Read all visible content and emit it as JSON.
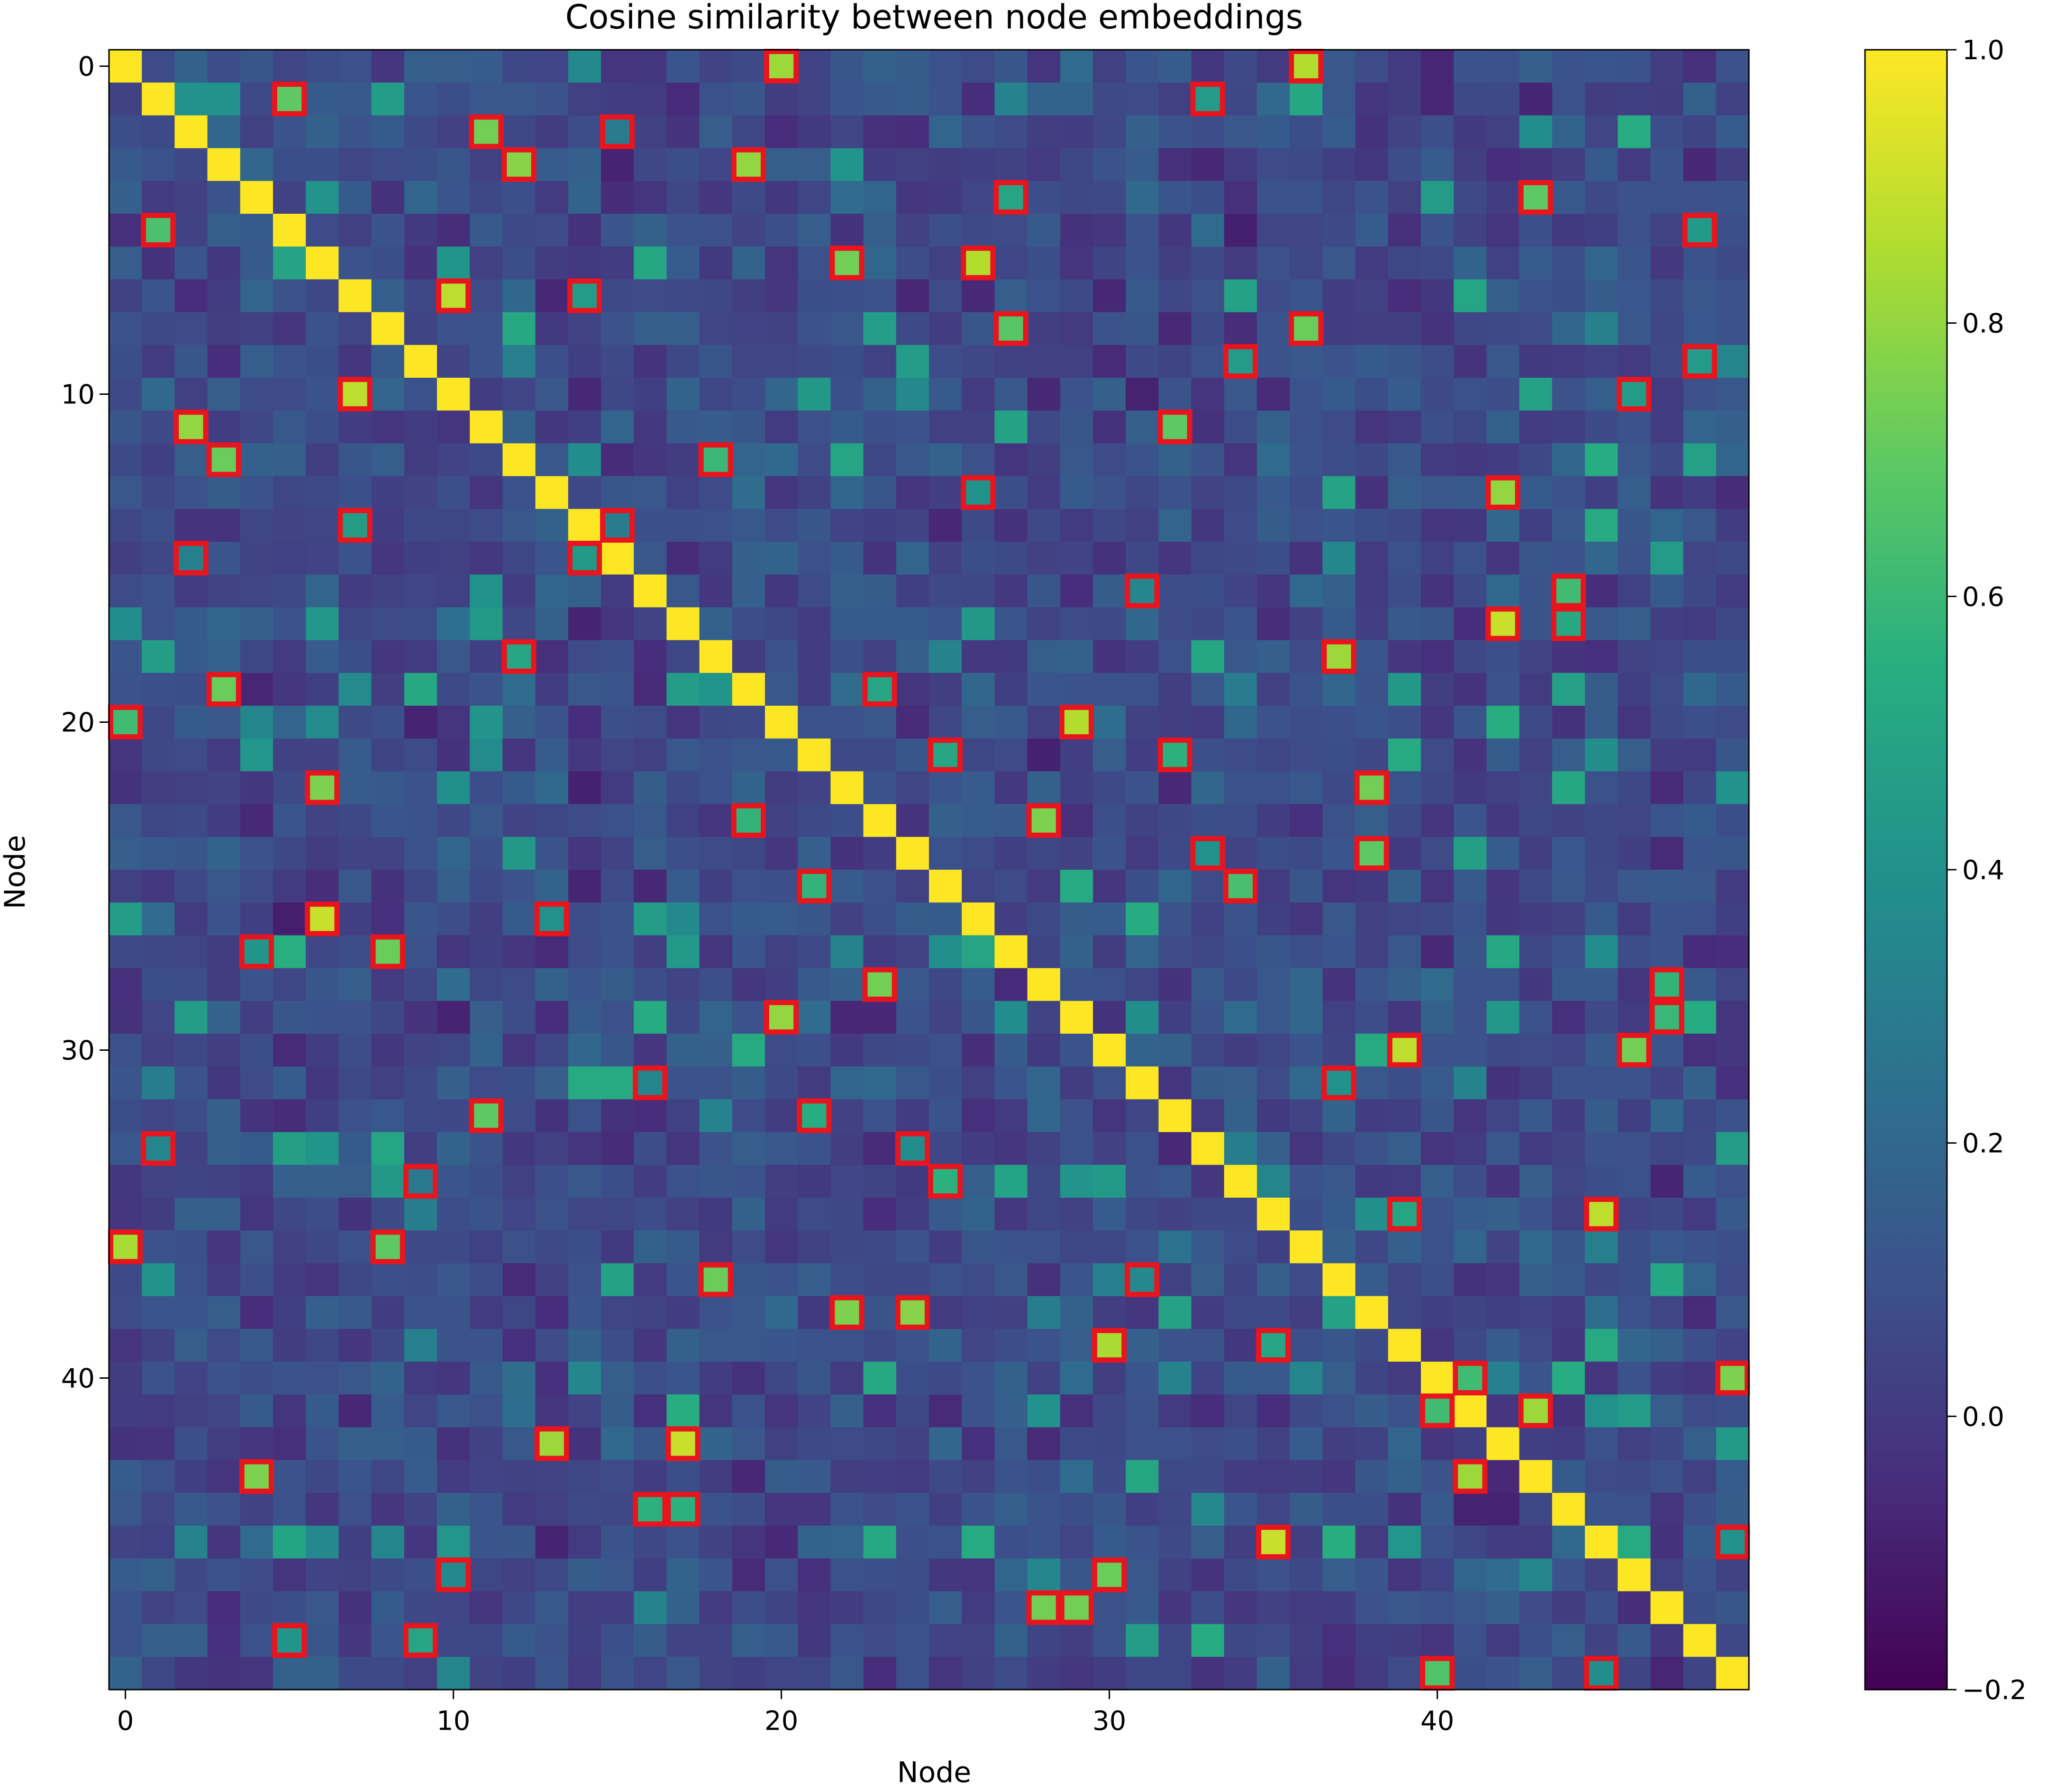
{
  "chart_data": {
    "type": "heatmap",
    "title": "Cosine similarity between node embeddings",
    "xlabel": "Node",
    "ylabel": "Node",
    "n": 50,
    "x_ticks": [
      0,
      10,
      20,
      30,
      40
    ],
    "y_ticks": [
      0,
      10,
      20,
      30,
      40
    ],
    "colormap": "viridis",
    "vmin": -0.2,
    "vmax": 1.0,
    "colorbar_ticks": [
      {
        "value": 1.0,
        "label": "1.0"
      },
      {
        "value": 0.8,
        "label": "0.8"
      },
      {
        "value": 0.6,
        "label": "0.6"
      },
      {
        "value": 0.4,
        "label": "0.4"
      },
      {
        "value": 0.2,
        "label": "0.2"
      },
      {
        "value": 0.0,
        "label": "0.0"
      },
      {
        "value": -0.2,
        "label": "−0.2"
      }
    ],
    "diagonal_value": 1.0,
    "background_value_range": [
      -0.2,
      0.6
    ],
    "highlight_color": "#e8141e",
    "highlighted_cells": [
      [
        0,
        20,
        0.82
      ],
      [
        0,
        36,
        0.86
      ],
      [
        1,
        5,
        0.7
      ],
      [
        1,
        33,
        0.45
      ],
      [
        2,
        11,
        0.74
      ],
      [
        2,
        15,
        0.3
      ],
      [
        3,
        12,
        0.78
      ],
      [
        3,
        19,
        0.8
      ],
      [
        4,
        27,
        0.5
      ],
      [
        4,
        43,
        0.7
      ],
      [
        5,
        1,
        0.65
      ],
      [
        5,
        48,
        0.44
      ],
      [
        6,
        22,
        0.74
      ],
      [
        6,
        26,
        0.86
      ],
      [
        7,
        10,
        0.88
      ],
      [
        7,
        14,
        0.45
      ],
      [
        8,
        27,
        0.68
      ],
      [
        8,
        36,
        0.72
      ],
      [
        9,
        34,
        0.45
      ],
      [
        9,
        48,
        0.45
      ],
      [
        10,
        7,
        0.88
      ],
      [
        10,
        46,
        0.45
      ],
      [
        11,
        2,
        0.8
      ],
      [
        11,
        32,
        0.7
      ],
      [
        12,
        3,
        0.72
      ],
      [
        12,
        18,
        0.6
      ],
      [
        13,
        26,
        0.4
      ],
      [
        13,
        42,
        0.8
      ],
      [
        14,
        7,
        0.46
      ],
      [
        14,
        15,
        0.3
      ],
      [
        15,
        2,
        0.32
      ],
      [
        15,
        14,
        0.44
      ],
      [
        16,
        31,
        0.35
      ],
      [
        16,
        44,
        0.62
      ],
      [
        17,
        42,
        0.9
      ],
      [
        17,
        44,
        0.52
      ],
      [
        18,
        12,
        0.5
      ],
      [
        18,
        37,
        0.82
      ],
      [
        19,
        3,
        0.72
      ],
      [
        19,
        23,
        0.5
      ],
      [
        20,
        0,
        0.62
      ],
      [
        20,
        29,
        0.86
      ],
      [
        21,
        25,
        0.5
      ],
      [
        21,
        32,
        0.56
      ],
      [
        22,
        6,
        0.76
      ],
      [
        22,
        38,
        0.74
      ],
      [
        23,
        19,
        0.58
      ],
      [
        23,
        28,
        0.76
      ],
      [
        24,
        33,
        0.4
      ],
      [
        24,
        38,
        0.7
      ],
      [
        25,
        21,
        0.58
      ],
      [
        25,
        34,
        0.64
      ],
      [
        26,
        6,
        0.9
      ],
      [
        26,
        13,
        0.4
      ],
      [
        27,
        4,
        0.42
      ],
      [
        27,
        8,
        0.72
      ],
      [
        28,
        23,
        0.74
      ],
      [
        28,
        47,
        0.58
      ],
      [
        29,
        20,
        0.8
      ],
      [
        29,
        47,
        0.6
      ],
      [
        30,
        39,
        0.88
      ],
      [
        30,
        46,
        0.74
      ],
      [
        31,
        16,
        0.34
      ],
      [
        31,
        37,
        0.4
      ],
      [
        32,
        11,
        0.7
      ],
      [
        32,
        21,
        0.54
      ],
      [
        33,
        1,
        0.34
      ],
      [
        33,
        24,
        0.38
      ],
      [
        34,
        9,
        0.28
      ],
      [
        34,
        25,
        0.56
      ],
      [
        35,
        39,
        0.5
      ],
      [
        35,
        45,
        0.88
      ],
      [
        36,
        0,
        0.84
      ],
      [
        36,
        8,
        0.7
      ],
      [
        37,
        18,
        0.72
      ],
      [
        37,
        31,
        0.36
      ],
      [
        38,
        22,
        0.76
      ],
      [
        38,
        24,
        0.78
      ],
      [
        39,
        30,
        0.84
      ],
      [
        39,
        35,
        0.5
      ],
      [
        40,
        41,
        0.62
      ],
      [
        40,
        49,
        0.76
      ],
      [
        41,
        40,
        0.62
      ],
      [
        41,
        43,
        0.82
      ],
      [
        42,
        13,
        0.82
      ],
      [
        42,
        17,
        0.9
      ],
      [
        43,
        4,
        0.76
      ],
      [
        43,
        41,
        0.82
      ],
      [
        44,
        16,
        0.56
      ],
      [
        44,
        17,
        0.56
      ],
      [
        45,
        35,
        0.9
      ],
      [
        45,
        49,
        0.4
      ],
      [
        46,
        10,
        0.36
      ],
      [
        46,
        30,
        0.72
      ],
      [
        47,
        28,
        0.74
      ],
      [
        47,
        29,
        0.74
      ],
      [
        48,
        5,
        0.42
      ],
      [
        48,
        9,
        0.5
      ],
      [
        49,
        40,
        0.66
      ],
      [
        49,
        45,
        0.38
      ]
    ]
  }
}
